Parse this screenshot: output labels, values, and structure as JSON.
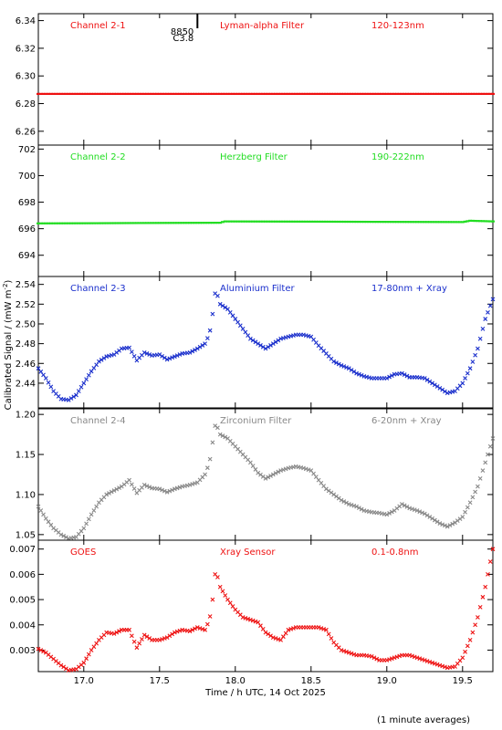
{
  "chart_data": {
    "type": "scatter",
    "xlabel": "Time / h UTC, 14 Oct 2025",
    "ylabel": "Calibrated Signal / (mW m",
    "ylabel_superscript": "-2",
    "ylabel_suffix": ")",
    "footnote": "(1 minute averages)",
    "xlim": [
      16.7,
      19.7
    ],
    "x_ticks": [
      "17.0",
      "17.5",
      "18.0",
      "18.5",
      "19.0",
      "19.5"
    ],
    "marker": {
      "label_top": "8850",
      "label_bottom": "C3.8",
      "x": 17.75
    },
    "panels": [
      {
        "name": "Channel 2-1",
        "filter": "Lyman-alpha Filter",
        "band": "120-123nm",
        "color": "#ee1111",
        "ylim": [
          6.25,
          6.345
        ],
        "y_ticks": [
          "6.34",
          "6.32",
          "6.30",
          "6.28",
          "6.26"
        ],
        "series": {
          "x": [
            16.7,
            19.7
          ],
          "y": [
            6.287,
            6.287
          ]
        }
      },
      {
        "name": "Channel 2-2",
        "filter": "Herzberg Filter",
        "band": "190-222nm",
        "color": "#22dd22",
        "ylim": [
          692.4,
          702.3
        ],
        "y_ticks": [
          "702",
          "700",
          "698",
          "696",
          "694"
        ],
        "series": {
          "x": [
            16.7,
            17.9,
            17.93,
            19.5,
            19.55,
            19.7
          ],
          "y": [
            696.4,
            696.45,
            696.55,
            696.5,
            696.6,
            696.55
          ]
        }
      },
      {
        "name": "Channel 2-3",
        "filter": "Aluminium Filter",
        "band": "17-80nm + Xray",
        "color": "#1a2fcc",
        "ylim": [
          2.415,
          2.548
        ],
        "y_ticks": [
          "2.54",
          "2.52",
          "2.50",
          "2.48",
          "2.46",
          "2.44"
        ],
        "series": {
          "x": [
            16.7,
            16.75,
            16.8,
            16.85,
            16.9,
            16.95,
            17.0,
            17.05,
            17.1,
            17.15,
            17.2,
            17.25,
            17.3,
            17.35,
            17.4,
            17.45,
            17.5,
            17.55,
            17.6,
            17.65,
            17.7,
            17.75,
            17.8,
            17.83,
            17.85,
            17.87,
            17.9,
            17.95,
            18.0,
            18.05,
            18.1,
            18.15,
            18.2,
            18.25,
            18.3,
            18.35,
            18.4,
            18.45,
            18.5,
            18.55,
            18.6,
            18.65,
            18.7,
            18.75,
            18.8,
            18.85,
            18.9,
            18.95,
            19.0,
            19.05,
            19.1,
            19.15,
            19.2,
            19.25,
            19.3,
            19.35,
            19.4,
            19.45,
            19.5,
            19.55,
            19.6,
            19.65,
            19.7
          ],
          "y": [
            2.455,
            2.445,
            2.432,
            2.424,
            2.423,
            2.428,
            2.44,
            2.452,
            2.462,
            2.467,
            2.469,
            2.475,
            2.476,
            2.463,
            2.471,
            2.468,
            2.469,
            2.464,
            2.467,
            2.47,
            2.471,
            2.475,
            2.48,
            2.49,
            2.51,
            2.535,
            2.52,
            2.515,
            2.505,
            2.495,
            2.485,
            2.48,
            2.475,
            2.48,
            2.485,
            2.487,
            2.489,
            2.489,
            2.487,
            2.478,
            2.47,
            2.462,
            2.458,
            2.455,
            2.45,
            2.447,
            2.445,
            2.445,
            2.445,
            2.449,
            2.45,
            2.446,
            2.446,
            2.445,
            2.44,
            2.435,
            2.43,
            2.432,
            2.44,
            2.455,
            2.475,
            2.505,
            2.525
          ]
        }
      },
      {
        "name": "Channel 2-4",
        "filter": "Zirconium Filter",
        "band": "6-20nm + Xray",
        "color": "#888888",
        "ylim": [
          1.043,
          1.207
        ],
        "y_ticks": [
          "1.20",
          "1.15",
          "1.10",
          "1.05"
        ],
        "series": {
          "x": [
            16.7,
            16.75,
            16.8,
            16.85,
            16.9,
            16.95,
            17.0,
            17.05,
            17.1,
            17.15,
            17.2,
            17.25,
            17.3,
            17.35,
            17.4,
            17.45,
            17.5,
            17.55,
            17.6,
            17.65,
            17.7,
            17.75,
            17.8,
            17.83,
            17.85,
            17.87,
            17.9,
            17.95,
            18.0,
            18.05,
            18.1,
            18.15,
            18.2,
            18.25,
            18.3,
            18.35,
            18.4,
            18.45,
            18.5,
            18.55,
            18.6,
            18.65,
            18.7,
            18.75,
            18.8,
            18.85,
            18.9,
            18.95,
            19.0,
            19.05,
            19.1,
            19.15,
            19.2,
            19.25,
            19.3,
            19.35,
            19.4,
            19.45,
            19.5,
            19.55,
            19.6,
            19.65,
            19.7
          ],
          "y": [
            1.085,
            1.07,
            1.058,
            1.05,
            1.045,
            1.047,
            1.058,
            1.075,
            1.09,
            1.1,
            1.105,
            1.11,
            1.118,
            1.102,
            1.112,
            1.108,
            1.107,
            1.103,
            1.107,
            1.11,
            1.112,
            1.115,
            1.125,
            1.14,
            1.165,
            1.19,
            1.175,
            1.17,
            1.16,
            1.15,
            1.14,
            1.127,
            1.12,
            1.125,
            1.13,
            1.133,
            1.135,
            1.133,
            1.13,
            1.118,
            1.107,
            1.1,
            1.093,
            1.088,
            1.085,
            1.08,
            1.078,
            1.077,
            1.075,
            1.08,
            1.088,
            1.083,
            1.08,
            1.076,
            1.07,
            1.064,
            1.06,
            1.065,
            1.072,
            1.09,
            1.11,
            1.14,
            1.17
          ]
        }
      },
      {
        "name": "GOES",
        "filter": "Xray Sensor",
        "band": "0.1-0.8nm",
        "color": "#ee1111",
        "ylim": [
          0.00215,
          0.00735
        ],
        "y_ticks": [
          "0.007",
          "0.006",
          "0.005",
          "0.004",
          "0.003"
        ],
        "series": {
          "x": [
            16.7,
            16.75,
            16.8,
            16.85,
            16.9,
            16.95,
            17.0,
            17.05,
            17.1,
            17.15,
            17.2,
            17.25,
            17.3,
            17.35,
            17.4,
            17.45,
            17.5,
            17.55,
            17.6,
            17.65,
            17.7,
            17.75,
            17.8,
            17.83,
            17.85,
            17.87,
            17.9,
            17.95,
            18.0,
            18.05,
            18.1,
            18.15,
            18.2,
            18.25,
            18.3,
            18.35,
            18.4,
            18.45,
            18.5,
            18.55,
            18.6,
            18.65,
            18.7,
            18.75,
            18.8,
            18.85,
            18.9,
            18.95,
            19.0,
            19.05,
            19.1,
            19.15,
            19.2,
            19.25,
            19.3,
            19.35,
            19.4,
            19.45,
            19.5,
            19.55,
            19.6,
            19.65,
            19.7
          ],
          "y": [
            0.00305,
            0.0029,
            0.00265,
            0.0024,
            0.0022,
            0.00225,
            0.0025,
            0.003,
            0.0034,
            0.0037,
            0.00365,
            0.0038,
            0.0038,
            0.0031,
            0.0036,
            0.0034,
            0.0034,
            0.0035,
            0.0037,
            0.0038,
            0.00375,
            0.0039,
            0.0038,
            0.0042,
            0.005,
            0.0062,
            0.0055,
            0.005,
            0.0046,
            0.0043,
            0.0042,
            0.0041,
            0.0037,
            0.0035,
            0.0034,
            0.0038,
            0.0039,
            0.0039,
            0.0039,
            0.0039,
            0.0038,
            0.0033,
            0.003,
            0.0029,
            0.0028,
            0.0028,
            0.00275,
            0.0026,
            0.0026,
            0.0027,
            0.0028,
            0.0028,
            0.0027,
            0.0026,
            0.0025,
            0.0024,
            0.0023,
            0.00235,
            0.0027,
            0.0034,
            0.0043,
            0.0055,
            0.007
          ]
        }
      }
    ]
  }
}
